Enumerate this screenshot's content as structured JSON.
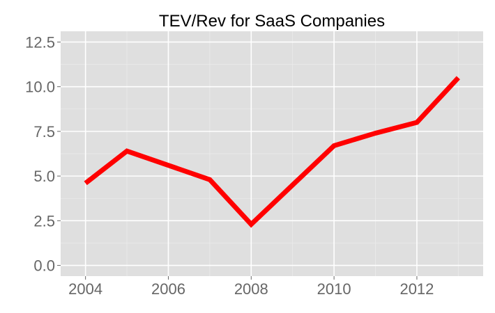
{
  "chart_data": {
    "type": "line",
    "title": "TEV/Rev for SaaS Companies",
    "xlabel": "",
    "ylabel": "",
    "x": [
      2004,
      2005,
      2006,
      2007,
      2008,
      2009,
      2010,
      2011,
      2012,
      2013
    ],
    "series": [
      {
        "values": [
          4.6,
          6.4,
          5.6,
          4.8,
          2.3,
          4.5,
          6.7,
          7.4,
          8.0,
          10.5
        ],
        "color": "#FF0000"
      }
    ],
    "xlim": [
      2003.4,
      2013.6
    ],
    "ylim": [
      -0.6,
      13.1
    ],
    "xticks": [
      "2004",
      "2006",
      "2008",
      "2010",
      "2012"
    ],
    "yticks": [
      "0.0",
      "2.5",
      "5.0",
      "7.5",
      "10.0",
      "12.5"
    ],
    "grid": true,
    "panel_background": "#DFDFDF",
    "grid_color": "#FFFFFF"
  }
}
